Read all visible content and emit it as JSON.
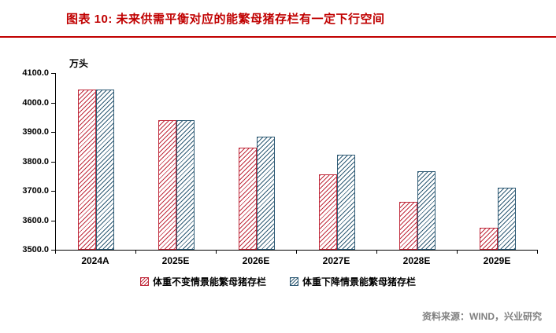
{
  "title": "图表 10: 未来供需平衡对应的能繁母猪存栏有一定下行空间",
  "source": "资料来源：WIND，兴业研究",
  "colors": {
    "title_red": "#C00000",
    "series1_red": "#C02B3C",
    "series2_navy": "#2F5B75",
    "source_gray": "#808080"
  },
  "chart_data": {
    "type": "bar",
    "unit_label": "万头",
    "categories": [
      "2024A",
      "2025E",
      "2026E",
      "2027E",
      "2028E",
      "2029E"
    ],
    "series": [
      {
        "name": "体重不变情景能繁母猪存栏",
        "color": "#C02B3C",
        "values": [
          4043,
          3940,
          3846,
          3756,
          3664,
          3576
        ]
      },
      {
        "name": "体重下降情景能繁母猪存栏",
        "color": "#2F5B75",
        "values": [
          4043,
          3941,
          3883,
          3823,
          3766,
          3710
        ]
      }
    ],
    "ylim": [
      3500,
      4100
    ],
    "y_ticks": [
      "3500.0",
      "3600.0",
      "3700.0",
      "3800.0",
      "3900.0",
      "4000.0",
      "4100.0"
    ],
    "grid": false,
    "legend_position": "bottom"
  }
}
